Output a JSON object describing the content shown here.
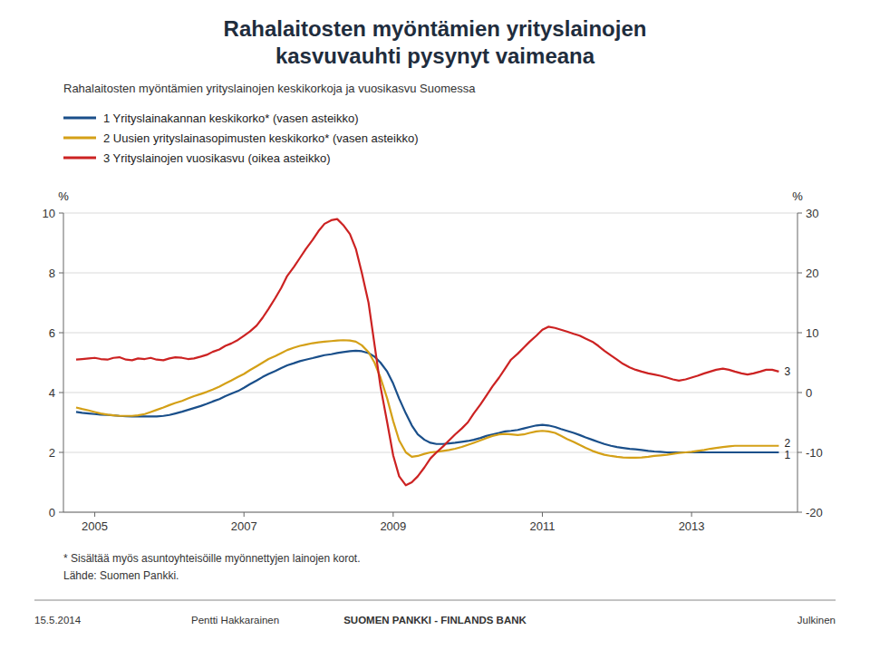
{
  "chart_data": {
    "type": "line",
    "title": [
      "Rahalaitosten myöntämien yrityslainojen",
      "kasvuvauhti pysynyt vaimeana"
    ],
    "subtitle": "Rahalaitosten myöntämien yrityslainojen keskikorkoja ja vuosikasvu Suomessa",
    "ylabel": "%",
    "y2label": "%",
    "annotations": [
      "1",
      "2",
      "3"
    ],
    "footnotes": [
      "* Sisältää myös asuntoyhteisöille myönnettyjen lainojen korot.",
      "Lähde: Suomen Pankki."
    ],
    "footer": [
      "15.5.2014",
      "Pentti Hakkarainen",
      "SUOMEN PANKKI - FINLANDS BANK",
      "Julkinen"
    ],
    "grid": true,
    "legend": "top-left",
    "xlim": [
      2004.58,
      2014.42
    ],
    "xticks": [
      2005,
      2007,
      2009,
      2011,
      2013
    ],
    "ylim": [
      0,
      10
    ],
    "yticks": [
      0,
      2,
      4,
      6,
      8,
      10
    ],
    "y2lim": [
      -20,
      30
    ],
    "y2ticks": [
      -20,
      -10,
      0,
      10,
      20,
      30
    ],
    "x": [
      2004.75,
      2004.83,
      2004.92,
      2005.0,
      2005.08,
      2005.17,
      2005.25,
      2005.33,
      2005.42,
      2005.5,
      2005.58,
      2005.67,
      2005.75,
      2005.83,
      2005.92,
      2006.0,
      2006.08,
      2006.17,
      2006.25,
      2006.33,
      2006.42,
      2006.5,
      2006.58,
      2006.67,
      2006.75,
      2006.83,
      2006.92,
      2007.0,
      2007.08,
      2007.17,
      2007.25,
      2007.33,
      2007.42,
      2007.5,
      2007.58,
      2007.67,
      2007.75,
      2007.83,
      2007.92,
      2008.0,
      2008.08,
      2008.17,
      2008.25,
      2008.33,
      2008.42,
      2008.5,
      2008.58,
      2008.67,
      2008.75,
      2008.83,
      2008.92,
      2009.0,
      2009.08,
      2009.17,
      2009.25,
      2009.33,
      2009.42,
      2009.5,
      2009.58,
      2009.67,
      2009.75,
      2009.83,
      2009.92,
      2010.0,
      2010.08,
      2010.17,
      2010.25,
      2010.33,
      2010.42,
      2010.5,
      2010.58,
      2010.67,
      2010.75,
      2010.83,
      2010.92,
      2011.0,
      2011.08,
      2011.17,
      2011.25,
      2011.33,
      2011.42,
      2011.5,
      2011.58,
      2011.67,
      2011.75,
      2011.83,
      2011.92,
      2012.0,
      2012.08,
      2012.17,
      2012.25,
      2012.33,
      2012.42,
      2012.5,
      2012.58,
      2012.67,
      2012.75,
      2012.83,
      2012.92,
      2013.0,
      2013.08,
      2013.17,
      2013.25,
      2013.33,
      2013.42,
      2013.5,
      2013.58,
      2013.67,
      2013.75,
      2013.83,
      2013.92,
      2014.0,
      2014.08,
      2014.17
    ],
    "series": [
      {
        "name": "1  Yrityslainakannan keskikorko* (vasen asteikko)",
        "color": "#1a4f8a",
        "values": [
          3.35,
          3.32,
          3.3,
          3.28,
          3.26,
          3.25,
          3.24,
          3.22,
          3.21,
          3.2,
          3.2,
          3.2,
          3.2,
          3.2,
          3.22,
          3.25,
          3.3,
          3.36,
          3.42,
          3.48,
          3.55,
          3.62,
          3.7,
          3.78,
          3.88,
          3.96,
          4.05,
          4.16,
          4.28,
          4.4,
          4.52,
          4.62,
          4.72,
          4.82,
          4.91,
          4.98,
          5.05,
          5.1,
          5.15,
          5.2,
          5.25,
          5.28,
          5.32,
          5.35,
          5.38,
          5.4,
          5.38,
          5.32,
          5.2,
          5.0,
          4.7,
          4.3,
          3.8,
          3.3,
          2.9,
          2.6,
          2.42,
          2.32,
          2.28,
          2.28,
          2.3,
          2.32,
          2.35,
          2.38,
          2.42,
          2.48,
          2.55,
          2.6,
          2.65,
          2.7,
          2.72,
          2.75,
          2.8,
          2.85,
          2.9,
          2.92,
          2.9,
          2.85,
          2.78,
          2.72,
          2.65,
          2.58,
          2.5,
          2.42,
          2.35,
          2.28,
          2.22,
          2.18,
          2.15,
          2.12,
          2.1,
          2.08,
          2.05,
          2.03,
          2.02,
          2.0,
          2.0,
          2.0,
          2.0,
          2.0,
          2.0,
          2.0,
          2.0,
          2.0,
          2.0,
          2.0,
          2.0,
          2.0,
          2.0,
          2.0,
          2.0,
          2.0,
          2.0,
          2.0
        ]
      },
      {
        "name": "2  Uusien yrityslainasopimusten keskikorko* (vasen asteikko)",
        "color": "#d4a017",
        "values": [
          3.5,
          3.45,
          3.4,
          3.35,
          3.3,
          3.26,
          3.24,
          3.22,
          3.22,
          3.22,
          3.24,
          3.28,
          3.35,
          3.42,
          3.5,
          3.58,
          3.65,
          3.72,
          3.8,
          3.88,
          3.95,
          4.02,
          4.1,
          4.2,
          4.3,
          4.4,
          4.52,
          4.62,
          4.75,
          4.88,
          5.0,
          5.12,
          5.22,
          5.32,
          5.42,
          5.5,
          5.56,
          5.6,
          5.65,
          5.68,
          5.7,
          5.72,
          5.74,
          5.75,
          5.74,
          5.7,
          5.58,
          5.35,
          5.0,
          4.5,
          3.8,
          3.05,
          2.4,
          2.0,
          1.85,
          1.88,
          1.95,
          2.0,
          2.02,
          2.05,
          2.08,
          2.12,
          2.18,
          2.25,
          2.32,
          2.4,
          2.48,
          2.55,
          2.6,
          2.62,
          2.6,
          2.58,
          2.6,
          2.65,
          2.7,
          2.72,
          2.7,
          2.65,
          2.55,
          2.45,
          2.35,
          2.25,
          2.15,
          2.05,
          1.98,
          1.92,
          1.88,
          1.85,
          1.83,
          1.82,
          1.82,
          1.83,
          1.85,
          1.88,
          1.9,
          1.92,
          1.95,
          1.98,
          2.0,
          2.02,
          2.05,
          2.08,
          2.12,
          2.15,
          2.18,
          2.2,
          2.22,
          2.22,
          2.22,
          2.22,
          2.22,
          2.22,
          2.22,
          2.22
        ]
      },
      {
        "name": "3  Yrityslainojen vuosikasvu (oikea asteikko)",
        "color": "#cc2222",
        "axis": "y2",
        "values": [
          5.5,
          5.6,
          5.7,
          5.8,
          5.6,
          5.5,
          5.8,
          5.9,
          5.5,
          5.4,
          5.7,
          5.6,
          5.8,
          5.5,
          5.4,
          5.7,
          5.9,
          5.8,
          5.6,
          5.7,
          6.0,
          6.3,
          6.8,
          7.2,
          7.8,
          8.2,
          8.8,
          9.5,
          10.2,
          11.2,
          12.5,
          14.0,
          15.8,
          17.5,
          19.5,
          21.0,
          22.5,
          24.0,
          25.5,
          27.0,
          28.2,
          28.8,
          29.0,
          28.0,
          26.5,
          24.0,
          20.0,
          15.0,
          8.0,
          1.0,
          -5.0,
          -10.5,
          -14.0,
          -15.5,
          -15.0,
          -14.0,
          -12.5,
          -11.0,
          -10.0,
          -9.0,
          -8.0,
          -7.0,
          -6.0,
          -5.0,
          -3.5,
          -2.0,
          -0.5,
          1.0,
          2.5,
          4.0,
          5.5,
          6.5,
          7.5,
          8.5,
          9.5,
          10.5,
          11.0,
          10.8,
          10.5,
          10.2,
          9.8,
          9.5,
          9.0,
          8.5,
          7.8,
          7.0,
          6.2,
          5.5,
          4.8,
          4.2,
          3.8,
          3.5,
          3.2,
          3.0,
          2.8,
          2.5,
          2.2,
          2.0,
          2.2,
          2.5,
          2.8,
          3.2,
          3.5,
          3.8,
          4.0,
          3.8,
          3.5,
          3.2,
          3.0,
          3.2,
          3.5,
          3.8,
          3.8,
          3.5
        ]
      }
    ]
  }
}
